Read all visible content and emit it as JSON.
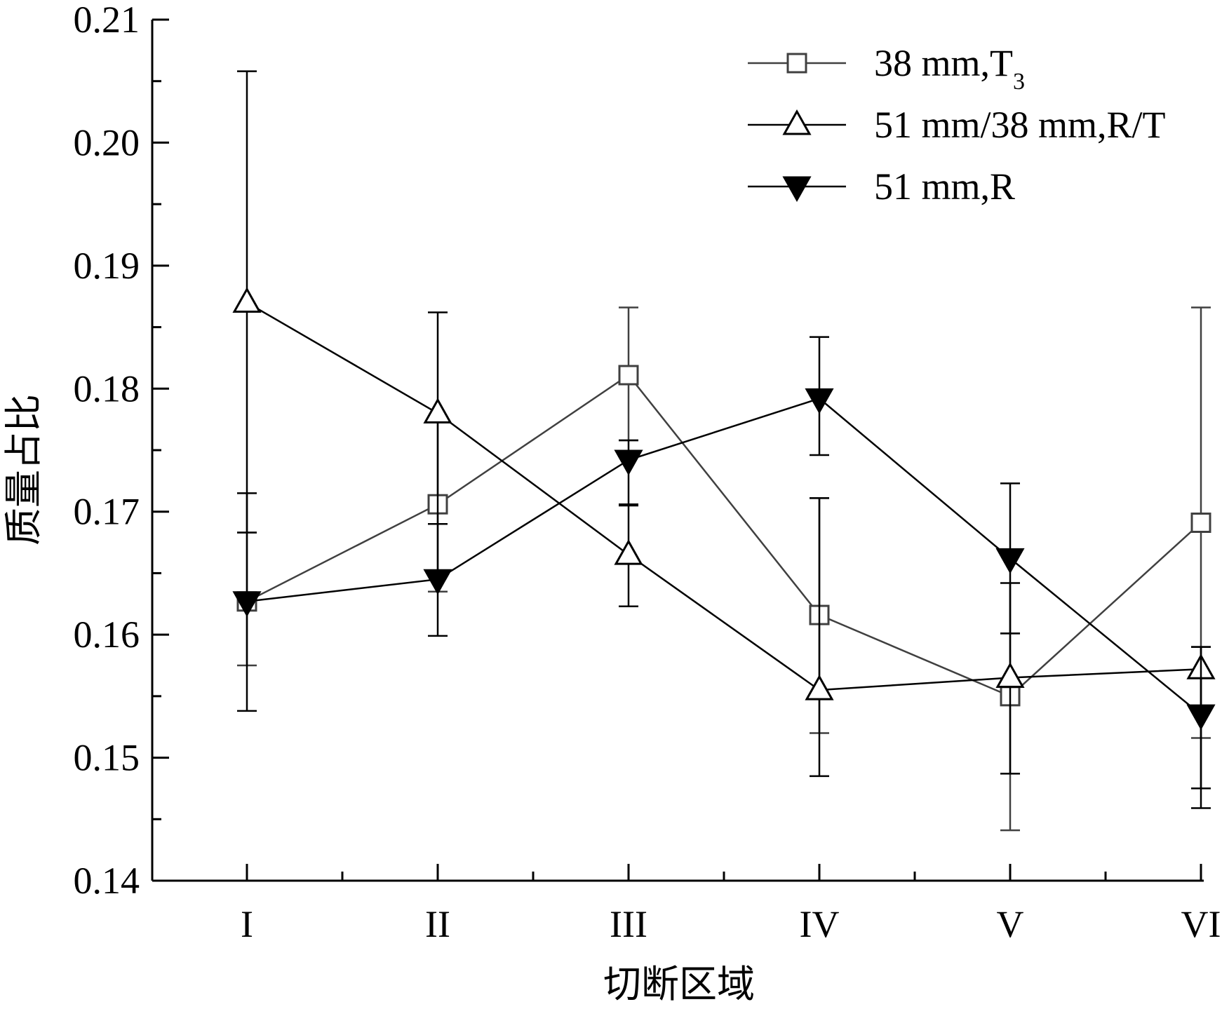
{
  "chart_data": {
    "type": "line",
    "title": "",
    "xlabel": "切断区域",
    "ylabel": "质量占比",
    "categories": [
      "I",
      "II",
      "III",
      "IV",
      "V",
      "VI"
    ],
    "ylim": [
      0.14,
      0.21
    ],
    "yticks": [
      "0.14",
      "0.15",
      "0.16",
      "0.17",
      "0.18",
      "0.19",
      "0.20",
      "0.21"
    ],
    "grid": false,
    "legend_position": "top-right",
    "series": [
      {
        "name": "38 mm,T",
        "subscript": "3",
        "marker": "square-open",
        "color": "#404040",
        "values": [
          0.1627,
          0.1706,
          0.1811,
          0.1616,
          0.155,
          0.1691
        ],
        "err_upper": [
          0.1683,
          0.1775,
          0.1866,
          0.1711,
          0.1601,
          0.1866
        ],
        "err_lower": [
          0.1575,
          0.1635,
          0.1758,
          0.152,
          0.1441,
          0.1516
        ]
      },
      {
        "name": "51 mm/38 mm,R/T",
        "subscript": "",
        "marker": "triangle-up-open",
        "color": "#000000",
        "values": [
          0.187,
          0.178,
          0.1665,
          0.1555,
          0.1565,
          0.1572
        ],
        "err_upper": [
          0.2058,
          0.1862,
          0.1706,
          0.1711,
          0.1642,
          0.159
        ],
        "err_lower": [
          0.1683,
          0.169,
          0.1623,
          0.1485,
          0.1487,
          0.1475
        ]
      },
      {
        "name": "51 mm,R",
        "subscript": "",
        "marker": "triangle-down-filled",
        "color": "#000000",
        "values": [
          0.1627,
          0.1645,
          0.1742,
          0.1792,
          0.1662,
          0.1535
        ],
        "err_upper": [
          0.1715,
          0.169,
          0.1758,
          0.1842,
          0.1723,
          0.159
        ],
        "err_lower": [
          0.1538,
          0.1599,
          0.1705,
          0.1746,
          0.1601,
          0.1459
        ]
      }
    ]
  }
}
